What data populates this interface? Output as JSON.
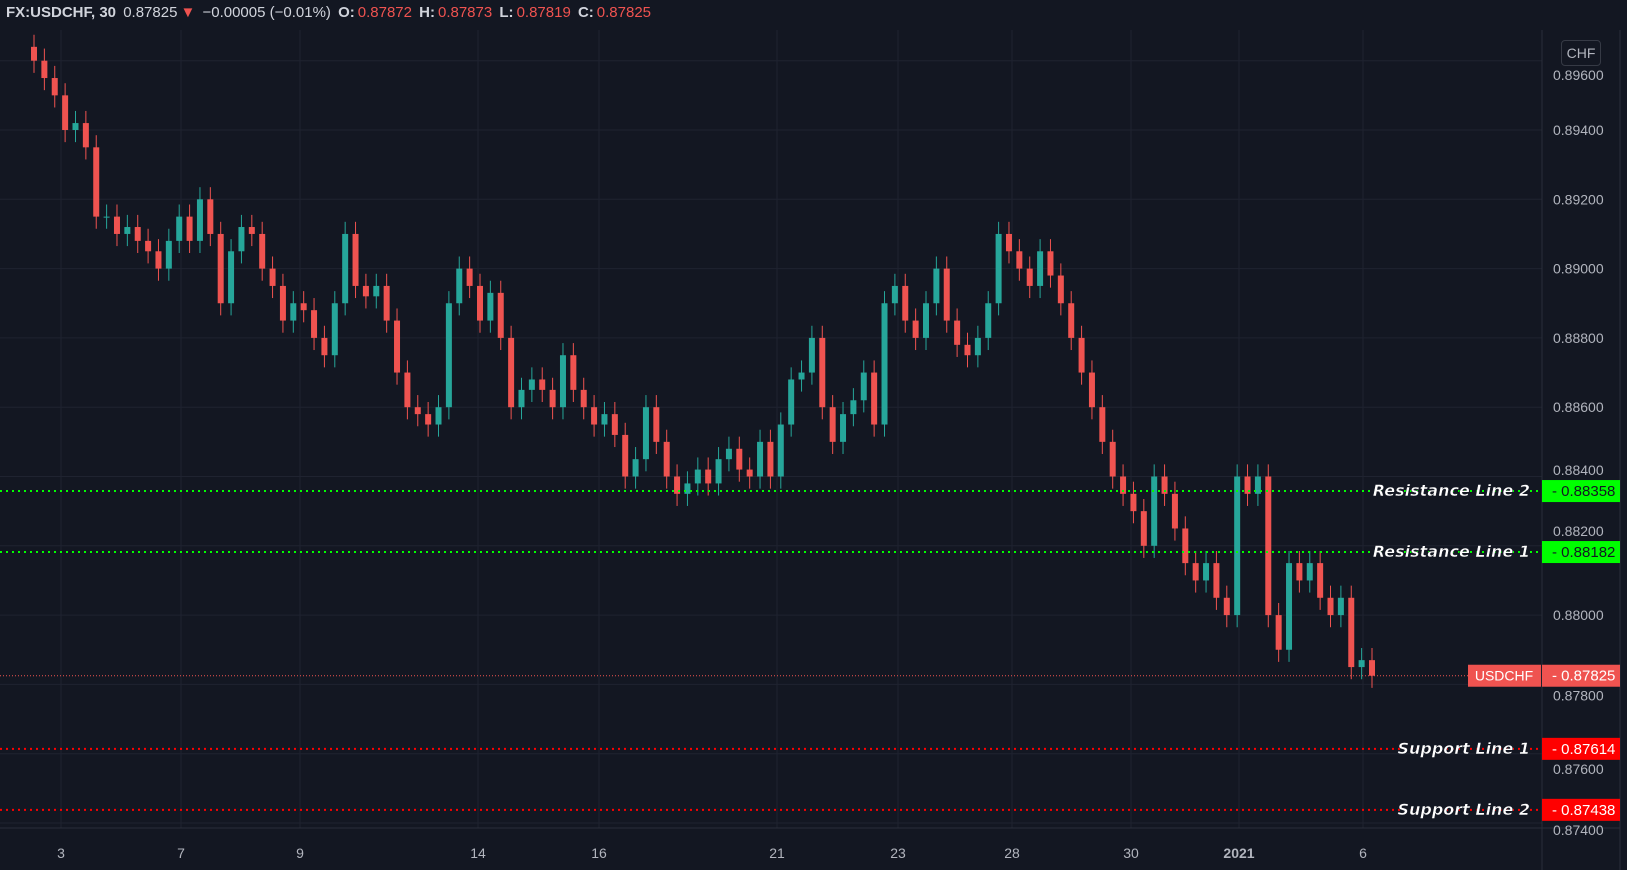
{
  "header": {
    "symbol": "FX:USDCHF, 30",
    "last": "0.87825",
    "direction_icon": "triangle-down-icon",
    "change": "−0.00005 (−0.01%)",
    "o_label": "O:",
    "o": "0.87872",
    "h_label": "H:",
    "h": "0.87873",
    "l_label": "L:",
    "l": "0.87819",
    "c_label": "C:",
    "c": "0.87825"
  },
  "currency_button": "CHF",
  "colors": {
    "background": "#131722",
    "up": "#26a69a",
    "down": "#ef5350",
    "grid": "#1f2330",
    "resistance": "#00ff00",
    "support": "#ff0000",
    "last_price": "#ef5350"
  },
  "chart_data": {
    "type": "candlestick",
    "symbol": "USDCHF",
    "interval": "30",
    "ylim": [
      0.8735,
      0.8965
    ],
    "y_ticks": [
      "0.89600",
      "0.89400",
      "0.89200",
      "0.89000",
      "0.88800",
      "0.88600",
      "0.88400",
      "0.88200",
      "0.88000",
      "0.87800",
      "0.87600",
      "0.87400"
    ],
    "x_ticks": [
      "3",
      "7",
      "9",
      "14",
      "16",
      "21",
      "23",
      "28",
      "30",
      "2021",
      "6"
    ],
    "grid": true,
    "closes": [
      0.896,
      0.8955,
      0.895,
      0.894,
      0.8942,
      0.8935,
      0.8915,
      0.8915,
      0.891,
      0.8912,
      0.8908,
      0.8905,
      0.89,
      0.8908,
      0.8915,
      0.8908,
      0.892,
      0.891,
      0.889,
      0.8905,
      0.8912,
      0.891,
      0.89,
      0.8895,
      0.8885,
      0.889,
      0.8888,
      0.888,
      0.8875,
      0.889,
      0.891,
      0.8895,
      0.8892,
      0.8895,
      0.8885,
      0.887,
      0.886,
      0.8858,
      0.8855,
      0.886,
      0.889,
      0.89,
      0.8895,
      0.8885,
      0.8893,
      0.888,
      0.886,
      0.8865,
      0.8868,
      0.8865,
      0.886,
      0.8875,
      0.8865,
      0.886,
      0.8855,
      0.8858,
      0.8852,
      0.884,
      0.8845,
      0.886,
      0.885,
      0.884,
      0.8835,
      0.8838,
      0.8842,
      0.8838,
      0.8845,
      0.8848,
      0.8842,
      0.884,
      0.885,
      0.884,
      0.8855,
      0.8868,
      0.887,
      0.888,
      0.886,
      0.885,
      0.8858,
      0.8862,
      0.887,
      0.8855,
      0.889,
      0.8895,
      0.8885,
      0.888,
      0.889,
      0.89,
      0.8885,
      0.8878,
      0.8875,
      0.888,
      0.889,
      0.891,
      0.8905,
      0.89,
      0.8895,
      0.8905,
      0.8898,
      0.889,
      0.888,
      0.887,
      0.886,
      0.885,
      0.884,
      0.8835,
      0.883,
      0.882,
      0.884,
      0.8835,
      0.8825,
      0.8815,
      0.881,
      0.8815,
      0.8805,
      0.88,
      0.884,
      0.8835,
      0.884,
      0.88,
      0.879,
      0.8815,
      0.881,
      0.8815,
      0.8805,
      0.88,
      0.8805,
      0.8785,
      0.8787,
      0.87825
    ],
    "last_price": {
      "label": "USDCHF",
      "value": "0.87825"
    },
    "horizontal_lines": [
      {
        "label": "Resistance Line 2",
        "value": "0.88358",
        "type": "resistance"
      },
      {
        "label": "Resistance Line 1",
        "value": "0.88182",
        "type": "resistance"
      },
      {
        "label": "Support Line 1",
        "value": "0.87614",
        "type": "support"
      },
      {
        "label": "Support Line 2",
        "value": "0.87438",
        "type": "support"
      }
    ]
  }
}
